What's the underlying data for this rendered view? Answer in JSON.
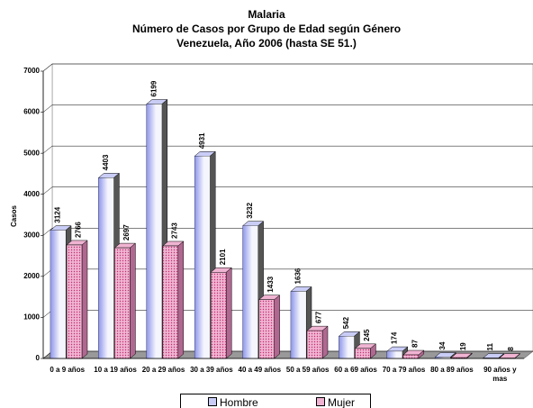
{
  "chart_data": {
    "type": "bar3d",
    "title": [
      "Malaria",
      "Número de Casos por Grupo de Edad según Género",
      "Venezuela, Año 2006 (hasta SE 51.)"
    ],
    "y_label": "Casos",
    "categories": [
      "0 a 9 años",
      "10 a 19 años",
      "20 a 29 años",
      "30 a 39 años",
      "40 a 49 años",
      "50 a 59 años",
      "60 a 69 años",
      "70 a 79 años",
      "80 a 89 años",
      "90 años y mas"
    ],
    "series": [
      {
        "name": "Hombre",
        "color": "#c9cdf6",
        "values": [
          3124,
          4403,
          6199,
          4931,
          3232,
          1636,
          542,
          174,
          34,
          11
        ]
      },
      {
        "name": "Mujer",
        "color": "#f0b4d2",
        "values": [
          2766,
          2697,
          2743,
          2101,
          1433,
          677,
          245,
          87,
          19,
          8
        ]
      }
    ],
    "ylim": [
      0,
      7000
    ],
    "yticks": [
      0,
      1000,
      2000,
      3000,
      4000,
      5000,
      6000,
      7000
    ],
    "grid": true
  }
}
